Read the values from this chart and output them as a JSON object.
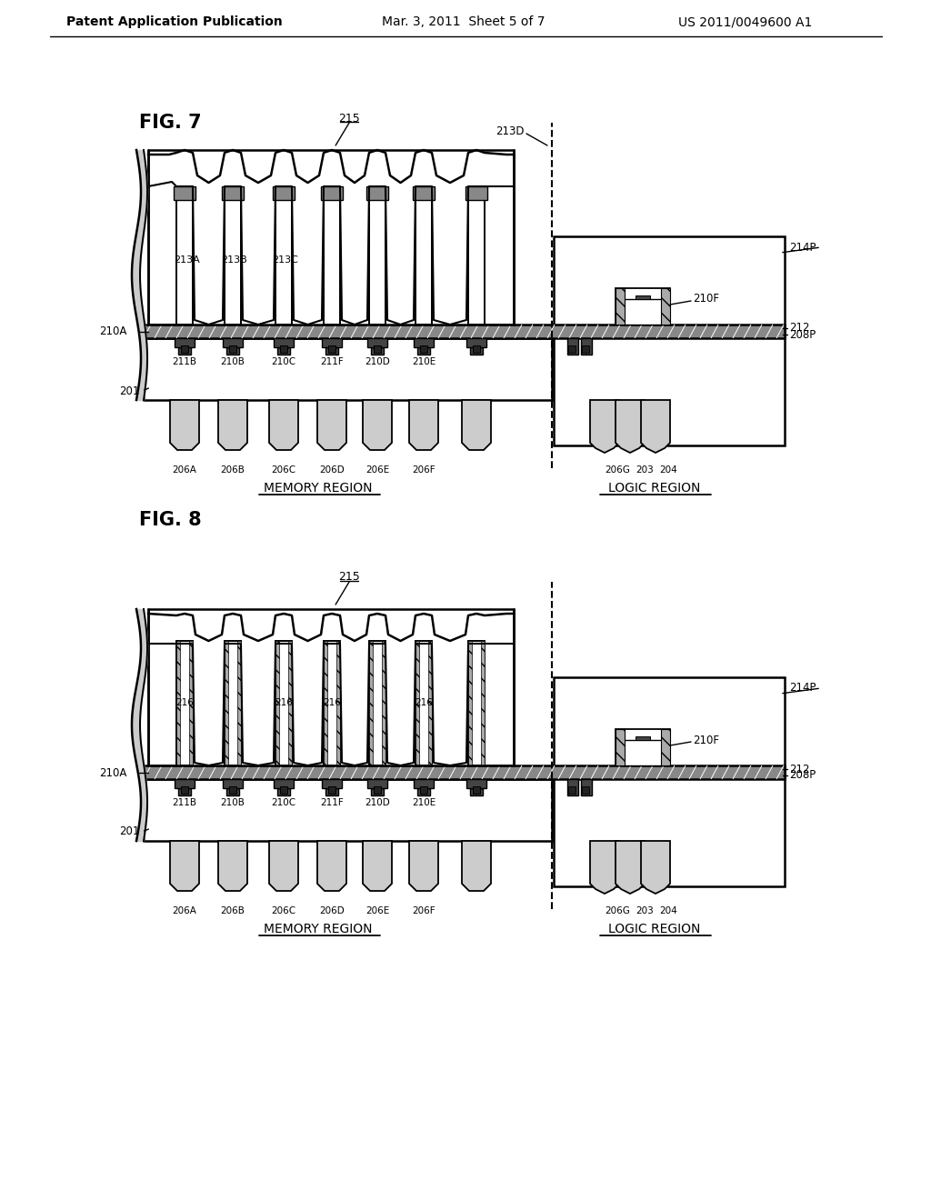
{
  "page_title_left": "Patent Application Publication",
  "page_title_mid": "Mar. 3, 2011  Sheet 5 of 7",
  "page_title_right": "US 2011/0049600 A1",
  "fig7_label": "FIG. 7",
  "fig8_label": "FIG. 8",
  "memory_region": "MEMORY REGION",
  "logic_region": "LOGIC REGION",
  "bg_color": "#ffffff"
}
